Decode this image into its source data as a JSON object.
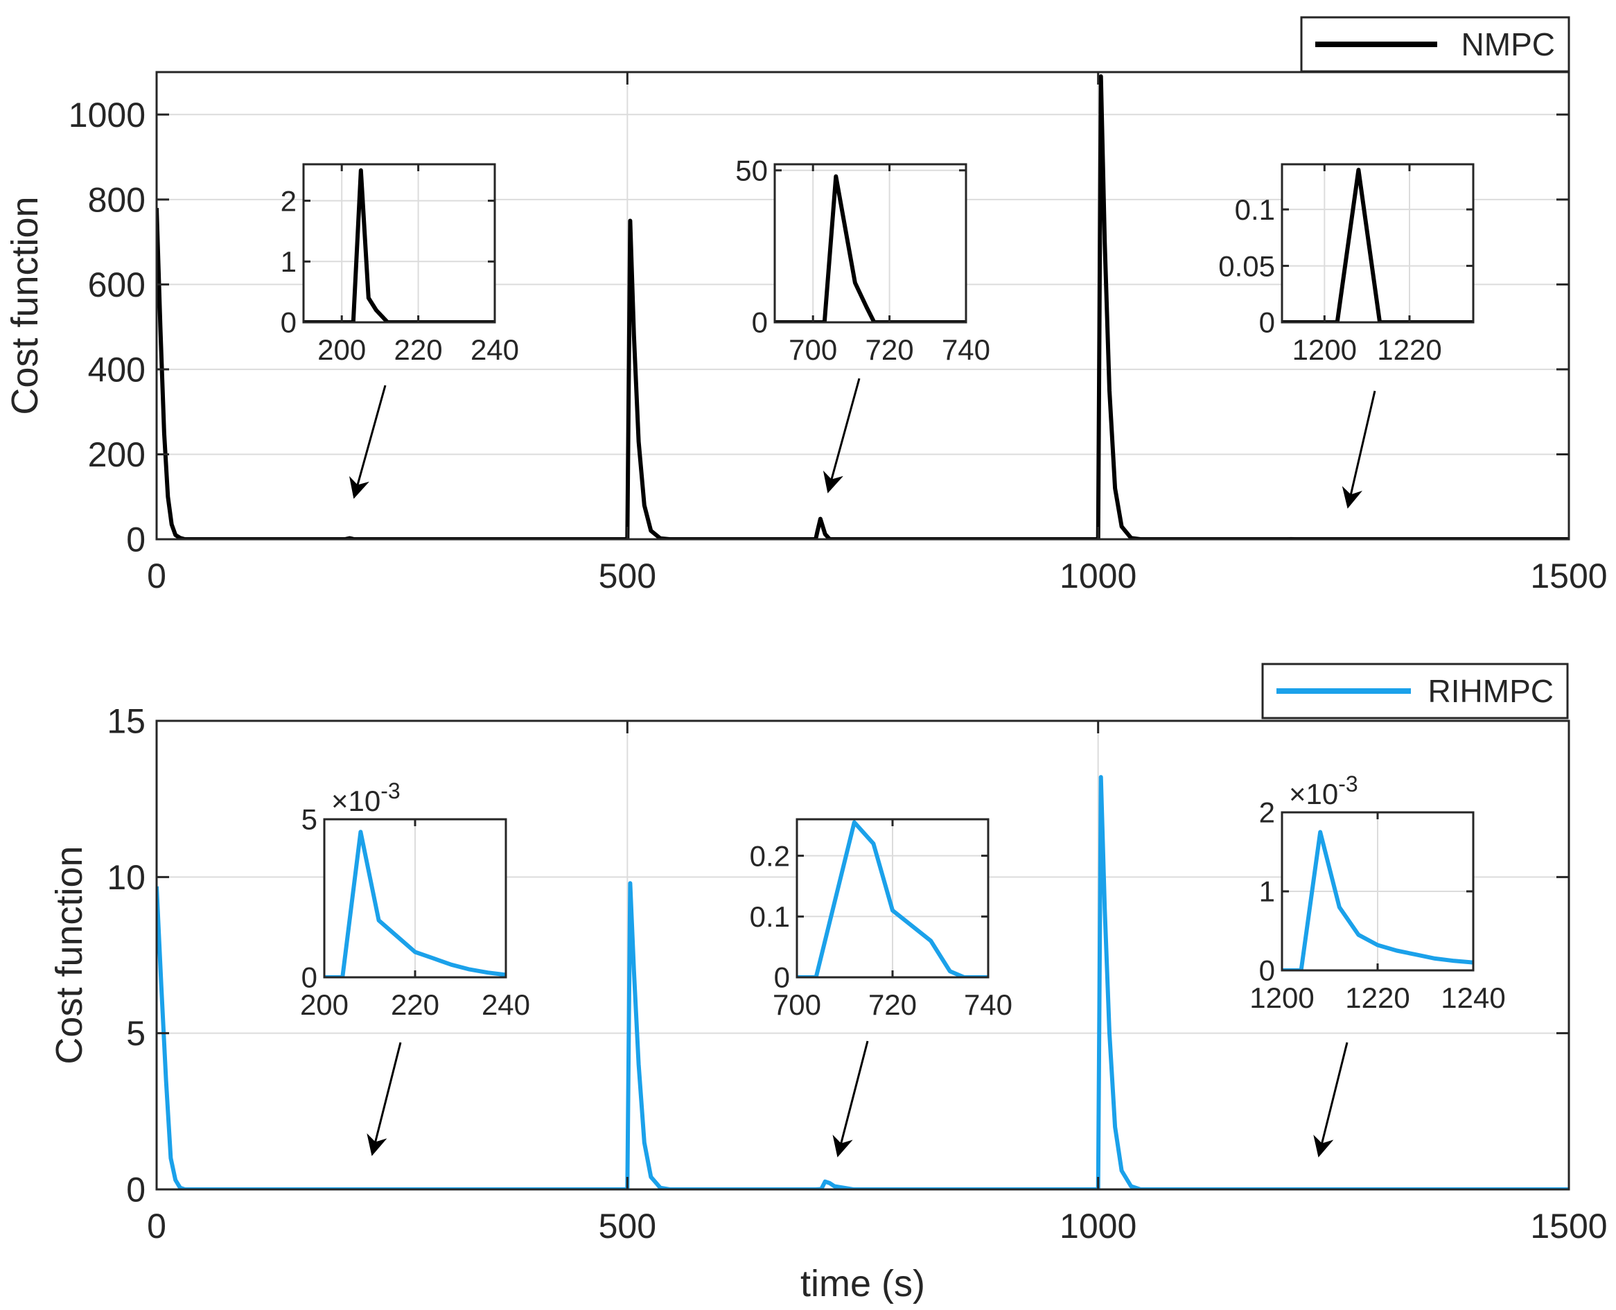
{
  "figure": {
    "xlabel": "time (s)"
  },
  "chart_data": [
    {
      "type": "line",
      "title": "",
      "xlabel": "",
      "ylabel": "Cost function",
      "xlim": [
        0,
        1500
      ],
      "ylim": [
        0,
        1100
      ],
      "xticks": [
        "0",
        "500",
        "1000",
        "1500"
      ],
      "yticks": [
        "0",
        "200",
        "400",
        "600",
        "800",
        "1000"
      ],
      "grid": true,
      "legend_position": "top-right",
      "series": [
        {
          "name": "NMPC",
          "color": "#000000",
          "x": [
            0,
            4,
            8,
            12,
            16,
            20,
            25,
            30,
            40,
            200,
            205,
            210,
            500,
            503,
            507,
            512,
            518,
            525,
            535,
            545,
            700,
            702,
            705,
            710,
            715,
            1000,
            1003,
            1007,
            1012,
            1018,
            1025,
            1035,
            1045,
            1200,
            1205,
            1210,
            1500
          ],
          "y": [
            780,
            500,
            250,
            100,
            35,
            10,
            3,
            0,
            0,
            0,
            2.4,
            0,
            0,
            750,
            480,
            230,
            80,
            20,
            2,
            0,
            0,
            20,
            48,
            12,
            0,
            0,
            1090,
            700,
            350,
            120,
            30,
            3,
            0,
            0,
            0.13,
            0,
            0
          ]
        }
      ],
      "insets": [
        {
          "xlim": [
            190,
            240
          ],
          "ylim": [
            0,
            2.6
          ],
          "xticks": [
            "200",
            "220",
            "240"
          ],
          "yticks": [
            "0",
            "1",
            "2"
          ],
          "x": [
            190,
            201,
            203,
            205,
            207,
            209,
            212,
            240
          ],
          "y": [
            0,
            0,
            0,
            2.5,
            0.4,
            0.2,
            0,
            0
          ]
        },
        {
          "xlim": [
            690,
            740
          ],
          "ylim": [
            0,
            52
          ],
          "xticks": [
            "700",
            "720",
            "740"
          ],
          "yticks": [
            "0",
            "50"
          ],
          "x": [
            690,
            701,
            703,
            706,
            711,
            714,
            716,
            740
          ],
          "y": [
            0,
            0,
            0,
            48,
            13,
            5,
            0,
            0
          ]
        },
        {
          "xlim": [
            1190,
            1235
          ],
          "ylim": [
            0,
            0.14
          ],
          "xticks": [
            "1200",
            "1220"
          ],
          "yticks": [
            "0",
            "0.05",
            "0.1"
          ],
          "x": [
            1190,
            1203,
            1208,
            1213,
            1235
          ],
          "y": [
            0,
            0,
            0.135,
            0,
            0
          ]
        }
      ]
    },
    {
      "type": "line",
      "title": "",
      "xlabel": "time (s)",
      "ylabel": "Cost function",
      "xlim": [
        0,
        1500
      ],
      "ylim": [
        0,
        15
      ],
      "xticks": [
        "0",
        "500",
        "1000",
        "1500"
      ],
      "yticks": [
        "0",
        "5",
        "10",
        "15"
      ],
      "grid": true,
      "legend_position": "top-right",
      "series": [
        {
          "name": "RIHMPC",
          "color": "#1ba1ea",
          "x": [
            0,
            5,
            10,
            15,
            20,
            25,
            30,
            40,
            500,
            503,
            507,
            512,
            518,
            525,
            535,
            545,
            700,
            706,
            710,
            715,
            720,
            730,
            740,
            1000,
            1003,
            1007,
            1012,
            1018,
            1025,
            1035,
            1045,
            1500
          ],
          "y": [
            9.7,
            6.5,
            3.5,
            1.0,
            0.3,
            0.05,
            0,
            0,
            0,
            9.8,
            7.0,
            4.0,
            1.5,
            0.4,
            0.05,
            0,
            0,
            0.01,
            0.25,
            0.2,
            0.1,
            0.05,
            0,
            0,
            13.2,
            9.0,
            5.0,
            2.0,
            0.6,
            0.1,
            0,
            0
          ]
        }
      ],
      "insets": [
        {
          "xlim": [
            200,
            240
          ],
          "ylim": [
            0,
            5
          ],
          "exponent_label": "×10",
          "exponent_power": "-3",
          "xticks": [
            "200",
            "220",
            "240"
          ],
          "yticks": [
            "0",
            "5"
          ],
          "x": [
            200,
            204,
            208,
            212,
            216,
            220,
            224,
            228,
            232,
            236,
            240
          ],
          "y": [
            0,
            0,
            4.6,
            1.8,
            1.3,
            0.8,
            0.6,
            0.4,
            0.25,
            0.15,
            0.08
          ]
        },
        {
          "xlim": [
            700,
            740
          ],
          "ylim": [
            0,
            0.26
          ],
          "xticks": [
            "700",
            "720",
            "740"
          ],
          "yticks": [
            "0",
            "0.1",
            "0.2"
          ],
          "x": [
            700,
            704,
            712,
            716,
            720,
            728,
            732,
            735,
            740
          ],
          "y": [
            0,
            0,
            0.255,
            0.22,
            0.11,
            0.06,
            0.01,
            0,
            0
          ]
        },
        {
          "xlim": [
            1200,
            1240
          ],
          "ylim": [
            0,
            2
          ],
          "exponent_label": "×10",
          "exponent_power": "-3",
          "xticks": [
            "1200",
            "1220",
            "1240"
          ],
          "yticks": [
            "0",
            "1",
            "2"
          ],
          "x": [
            1200,
            1204,
            1208,
            1212,
            1216,
            1220,
            1224,
            1228,
            1232,
            1236,
            1240
          ],
          "y": [
            0,
            0,
            1.75,
            0.8,
            0.45,
            0.32,
            0.25,
            0.2,
            0.15,
            0.12,
            0.1
          ]
        }
      ]
    }
  ]
}
